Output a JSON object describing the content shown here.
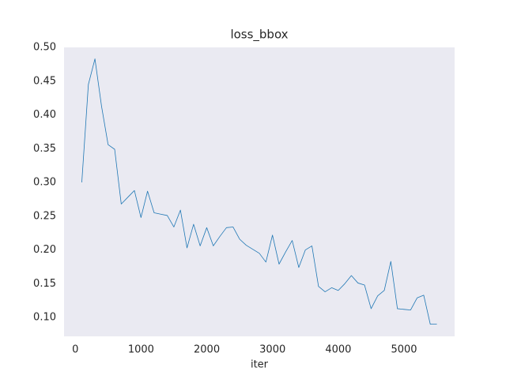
{
  "chart_data": {
    "type": "line",
    "title": "loss_bbox",
    "x_label": "iter",
    "x": [
      99,
      199,
      299,
      399,
      499,
      599,
      699,
      799,
      899,
      999,
      1099,
      1199,
      1299,
      1399,
      1499,
      1599,
      1699,
      1799,
      1899,
      1999,
      2099,
      2199,
      2299,
      2399,
      2499,
      2599,
      2699,
      2799,
      2899,
      2999,
      3099,
      3199,
      3299,
      3399,
      3499,
      3599,
      3699,
      3799,
      3899,
      3999,
      4099,
      4199,
      4299,
      4399,
      4499,
      4599,
      4699,
      4799,
      4899,
      4999,
      5099,
      5199,
      5299,
      5399,
      5499
    ],
    "series": [
      {
        "name": "loss_bbox",
        "color": "#1f77b4",
        "values": [
          0.3,
          0.445,
          0.483,
          0.413,
          0.356,
          0.349,
          0.268,
          0.278,
          0.288,
          0.248,
          0.287,
          0.255,
          0.253,
          0.251,
          0.234,
          0.259,
          0.203,
          0.238,
          0.206,
          0.233,
          0.206,
          0.22,
          0.233,
          0.234,
          0.216,
          0.207,
          0.201,
          0.195,
          0.182,
          0.222,
          0.179,
          0.197,
          0.214,
          0.174,
          0.2,
          0.206,
          0.146,
          0.138,
          0.144,
          0.14,
          0.15,
          0.162,
          0.151,
          0.148,
          0.113,
          0.132,
          0.14,
          0.183,
          0.113,
          0.112,
          0.111,
          0.129,
          0.133,
          0.09,
          0.09
        ]
      }
    ],
    "xlim": [
      -171,
      5769
    ],
    "ylim": [
      0.072,
      0.5
    ],
    "xticks": [
      0,
      1000,
      2000,
      3000,
      4000,
      5000
    ],
    "yticks": [
      {
        "value": 0.1,
        "label": "0.10"
      },
      {
        "value": 0.15,
        "label": "0.15"
      },
      {
        "value": 0.2,
        "label": "0.20"
      },
      {
        "value": 0.25,
        "label": "0.25"
      },
      {
        "value": 0.3,
        "label": "0.30"
      },
      {
        "value": 0.35,
        "label": "0.35"
      },
      {
        "value": 0.4,
        "label": "0.40"
      },
      {
        "value": 0.45,
        "label": "0.45"
      },
      {
        "value": 0.5,
        "label": "0.50"
      }
    ],
    "background": "#eaeaf2",
    "grid": false
  }
}
